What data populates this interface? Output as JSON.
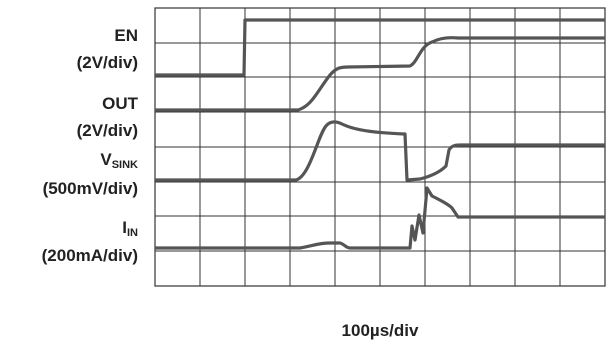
{
  "channels": [
    {
      "name": "EN",
      "scale": "(2V/div)"
    },
    {
      "name": "OUT",
      "scale": "(2V/div)"
    },
    {
      "name": "V",
      "sub": "SINK",
      "scale": "(500mV/div)"
    },
    {
      "name": "I",
      "sub": "IN",
      "scale": "(200mA/div)"
    }
  ],
  "time_scale": "100µs/div"
}
